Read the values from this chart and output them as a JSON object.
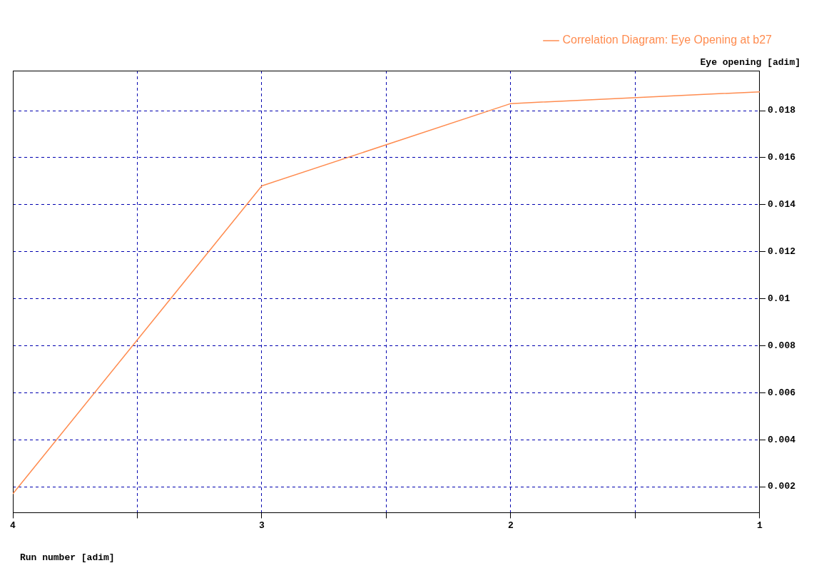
{
  "chart_data": {
    "type": "line",
    "xlabel": "Run number [adim]",
    "ylabel": "Eye opening [adim]",
    "x": [
      4,
      3,
      2,
      1
    ],
    "series": [
      {
        "name": "Correlation Diagram: Eye Opening at b27",
        "color": "#ff8c50",
        "values": [
          0.0017,
          0.0148,
          0.0183,
          0.0188
        ]
      }
    ],
    "xlim": [
      4,
      1
    ],
    "xticks": [
      {
        "value": 4,
        "label": "4"
      },
      {
        "value": 3.5,
        "label": null
      },
      {
        "value": 3,
        "label": "3"
      },
      {
        "value": 2.5,
        "label": null
      },
      {
        "value": 2,
        "label": "2"
      },
      {
        "value": 1.5,
        "label": null
      },
      {
        "value": 1,
        "label": "1"
      }
    ],
    "ylim": [
      0.0009,
      0.0197
    ],
    "yticks": [
      0.002,
      0.004,
      0.006,
      0.008,
      0.01,
      0.012,
      0.014,
      0.016,
      0.018
    ],
    "grid": true,
    "legend": "top right",
    "line_style": "solid",
    "marker": "none"
  }
}
